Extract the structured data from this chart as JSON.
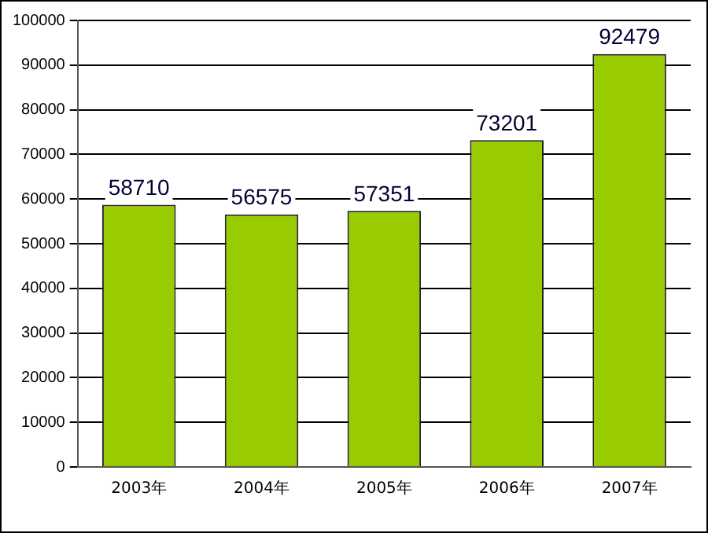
{
  "chart_data": {
    "type": "bar",
    "categories": [
      "2003年",
      "2004年",
      "2005年",
      "2006年",
      "2007年"
    ],
    "values": [
      58710,
      56575,
      57351,
      73201,
      92479
    ],
    "color": "#99cc00",
    "ylim": [
      0,
      100000
    ],
    "yticks": [
      0,
      10000,
      20000,
      30000,
      40000,
      50000,
      60000,
      70000,
      80000,
      90000,
      100000
    ],
    "grid": "y",
    "data_labels": true
  }
}
